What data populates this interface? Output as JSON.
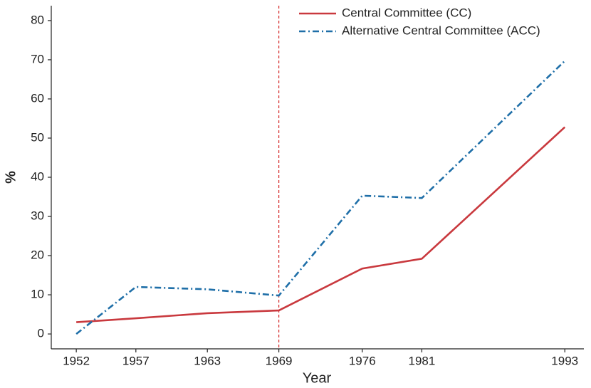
{
  "chart_data": {
    "type": "line",
    "x_label": "Year",
    "y_label": "%",
    "x": [
      1952,
      1957,
      1963,
      1969,
      1976,
      1981,
      1993
    ],
    "series": [
      {
        "name": "Central Committee (CC)",
        "color": "#c9393e",
        "dash": "solid",
        "values": [
          3.0,
          4.0,
          5.3,
          6.0,
          16.7,
          19.2,
          52.8
        ]
      },
      {
        "name": "Alternative Central Committee (ACC)",
        "color": "#1f6fa8",
        "dash": "dashdot",
        "values": [
          0,
          12.0,
          11.4,
          9.8,
          35.3,
          34.7,
          69.7
        ]
      }
    ],
    "xlim": [
      1949.9,
      1994.6
    ],
    "xticks": [
      1952,
      1957,
      1963,
      1969,
      1976,
      1981,
      1993
    ],
    "ylim": [
      -3.8,
      83.8
    ],
    "yticks": [
      0,
      10,
      20,
      30,
      40,
      50,
      60,
      70,
      80
    ],
    "vline": {
      "x": 1969,
      "color": "#d62728"
    },
    "legend": "upper right",
    "grid": false
  }
}
